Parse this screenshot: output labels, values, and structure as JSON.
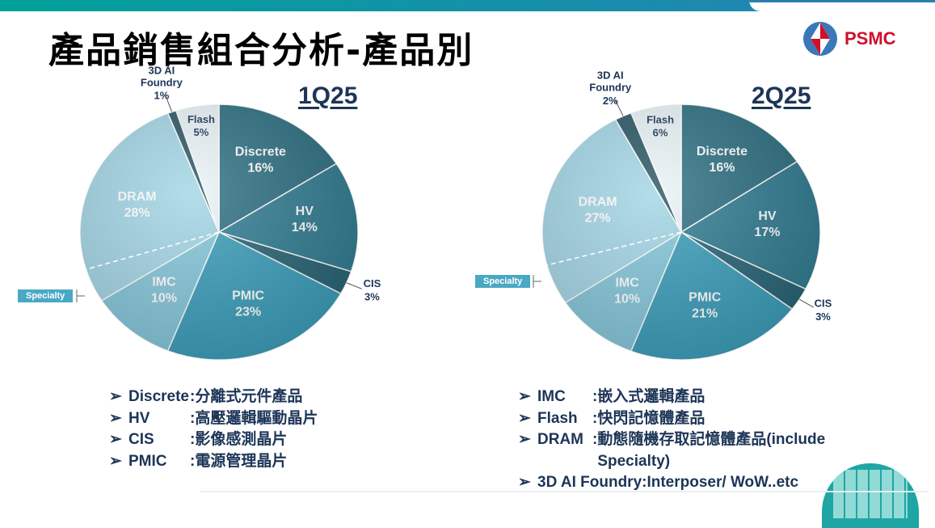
{
  "header": {
    "title": "產品銷售組合分析-產品別",
    "logo_text": "PSMC"
  },
  "chart_data": [
    {
      "type": "pie",
      "title": "1Q25",
      "categories": [
        "Discrete",
        "HV",
        "CIS",
        "PMIC",
        "IMC",
        "DRAM",
        "3D AI Foundry",
        "Flash"
      ],
      "values": [
        16,
        14,
        3,
        23,
        10,
        28,
        1,
        5
      ],
      "labels": [
        "16%",
        "14%",
        "3%",
        "23%",
        "10%",
        "28%",
        "1%",
        "5%"
      ],
      "colors": [
        "#2f7184",
        "#327e93",
        "#2a6677",
        "#3c9fbb",
        "#86c8dc",
        "#a4d6e6",
        "#2b5866",
        "#eaf4f8"
      ],
      "annotation": "Specialty"
    },
    {
      "type": "pie",
      "title": "2Q25",
      "categories": [
        "Discrete",
        "HV",
        "CIS",
        "PMIC",
        "IMC",
        "DRAM",
        "3D AI Foundry",
        "Flash"
      ],
      "values": [
        16,
        17,
        3,
        21,
        10,
        27,
        2,
        6
      ],
      "labels": [
        "16%",
        "17%",
        "3%",
        "21%",
        "10%",
        "27%",
        "2%",
        "6%"
      ],
      "colors": [
        "#2f7184",
        "#327e93",
        "#2a6677",
        "#3c9fbb",
        "#86c8dc",
        "#a4d6e6",
        "#2b5866",
        "#eaf4f8"
      ],
      "annotation": "Specialty"
    }
  ],
  "legend_left": [
    {
      "term": "Discrete",
      "sep": " : ",
      "desc": "分離式元件產品"
    },
    {
      "term": "HV",
      "sep": " : ",
      "desc": "高壓邏輯驅動晶片"
    },
    {
      "term": "CIS",
      "sep": " : ",
      "desc": "影像感測晶片"
    },
    {
      "term": "PMIC",
      "sep": " : ",
      "desc": "電源管理晶片"
    }
  ],
  "legend_right": [
    {
      "term": "IMC",
      "sep": " : ",
      "desc": "嵌入式邏輯產品"
    },
    {
      "term": "Flash",
      "sep": " : ",
      "desc": "快閃記憶體產品"
    },
    {
      "term": "DRAM",
      "sep": " : ",
      "desc": "動態隨機存取記憶體產品(include Specialty)"
    },
    {
      "term": "3D AI Foundry:",
      "sep": " ",
      "desc": "Interposer/ WoW..etc"
    }
  ],
  "bullet": "➢"
}
